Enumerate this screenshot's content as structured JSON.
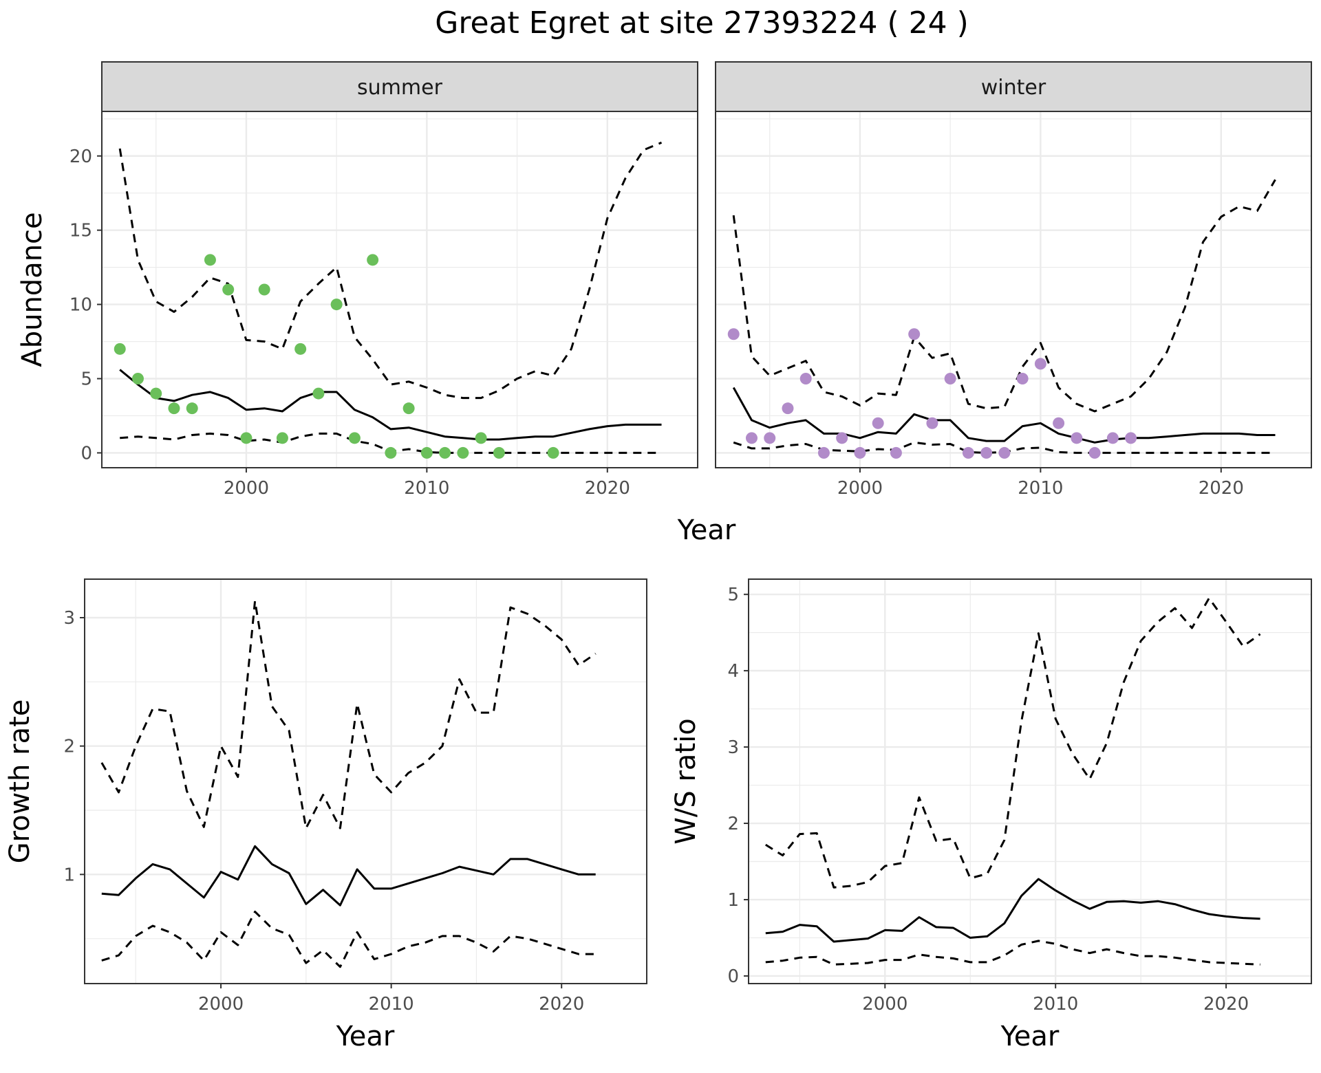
{
  "title": "Great Egret at site 27393224 ( 24 )",
  "colors": {
    "summer_points": "#6abf5a",
    "winter_points": "#b18bc9",
    "line": "#000000",
    "grid": "#ebebeb",
    "strip_bg": "#d9d9d9"
  },
  "chart_data": [
    {
      "type": "line",
      "facet": "summer",
      "xlabel": "Year",
      "ylabel": "Abundance",
      "xlim": [
        1992,
        2025
      ],
      "ylim": [
        -1,
        23
      ],
      "x_ticks": [
        2000,
        2010,
        2020
      ],
      "y_ticks": [
        0,
        5,
        10,
        15,
        20
      ],
      "grid": true,
      "points": {
        "x": [
          1993,
          1994,
          1995,
          1996,
          1997,
          1998,
          1999,
          2000,
          2001,
          2002,
          2003,
          2004,
          2005,
          2006,
          2007,
          2008,
          2009,
          2010,
          2011,
          2012,
          2013,
          2014,
          2017
        ],
        "y": [
          7,
          5,
          4,
          3,
          3,
          13,
          11,
          1,
          11,
          1,
          7,
          4,
          10,
          1,
          13,
          0,
          3,
          0,
          0,
          0,
          1,
          0,
          0
        ]
      },
      "series": [
        {
          "role": "estimate",
          "style": "solid",
          "x": [
            1993,
            1994,
            1995,
            1996,
            1997,
            1998,
            1999,
            2000,
            2001,
            2002,
            2003,
            2004,
            2005,
            2006,
            2007,
            2008,
            2009,
            2010,
            2011,
            2012,
            2013,
            2014,
            2015,
            2016,
            2017,
            2018,
            2019,
            2020,
            2021,
            2022,
            2023
          ],
          "values": [
            5.6,
            4.6,
            3.7,
            3.5,
            3.9,
            4.1,
            3.7,
            2.9,
            3.0,
            2.8,
            3.7,
            4.1,
            4.1,
            2.9,
            2.4,
            1.6,
            1.7,
            1.4,
            1.1,
            1.0,
            0.9,
            0.9,
            1.0,
            1.1,
            1.1,
            1.35,
            1.6,
            1.8,
            1.9,
            1.9,
            1.9
          ]
        },
        {
          "role": "upper",
          "style": "dashed",
          "x": [
            1993,
            1994,
            1995,
            1996,
            1997,
            1998,
            1999,
            2000,
            2001,
            2002,
            2003,
            2004,
            2005,
            2006,
            2007,
            2008,
            2009,
            2010,
            2011,
            2012,
            2013,
            2014,
            2015,
            2016,
            2017,
            2018,
            2019,
            2020,
            2021,
            2022,
            2023
          ],
          "values": [
            20.5,
            13,
            10.2,
            9.5,
            10.5,
            11.8,
            11.4,
            7.6,
            7.5,
            7.0,
            10.2,
            11.4,
            12.5,
            7.8,
            6.3,
            4.6,
            4.8,
            4.4,
            3.9,
            3.7,
            3.7,
            4.2,
            5.0,
            5.5,
            5.2,
            7.0,
            11.0,
            15.8,
            18.5,
            20.4,
            20.9
          ]
        },
        {
          "role": "lower",
          "style": "dashed",
          "x": [
            1993,
            1994,
            1995,
            1996,
            1997,
            1998,
            1999,
            2000,
            2001,
            2002,
            2003,
            2004,
            2005,
            2006,
            2007,
            2008,
            2009,
            2010,
            2011,
            2012,
            2013,
            2014,
            2015,
            2016,
            2017,
            2018,
            2019,
            2020,
            2021,
            2022,
            2023
          ],
          "values": [
            1.0,
            1.1,
            1.0,
            0.9,
            1.2,
            1.3,
            1.2,
            0.8,
            0.9,
            0.7,
            1.1,
            1.3,
            1.3,
            0.8,
            0.6,
            0.1,
            0.25,
            0.05,
            0,
            0,
            0,
            0,
            0,
            0,
            0,
            0,
            0,
            0,
            0,
            0,
            0
          ]
        }
      ]
    },
    {
      "type": "line",
      "facet": "winter",
      "xlabel": "Year",
      "ylabel": "",
      "xlim": [
        1992,
        2025
      ],
      "ylim": [
        -1,
        23
      ],
      "x_ticks": [
        2000,
        2010,
        2020
      ],
      "y_ticks": [
        0,
        5,
        10,
        15,
        20
      ],
      "grid": true,
      "points": {
        "x": [
          1993,
          1994,
          1995,
          1996,
          1997,
          1998,
          1999,
          2000,
          2001,
          2002,
          2003,
          2004,
          2005,
          2006,
          2007,
          2008,
          2009,
          2010,
          2011,
          2012,
          2013,
          2014,
          2015
        ],
        "y": [
          8,
          1,
          1,
          3,
          5,
          0,
          1,
          0,
          2,
          0,
          8,
          2,
          5,
          0,
          0,
          0,
          5,
          6,
          2,
          1,
          0,
          1,
          1
        ]
      },
      "series": [
        {
          "role": "estimate",
          "style": "solid",
          "x": [
            1993,
            1994,
            1995,
            1996,
            1997,
            1998,
            1999,
            2000,
            2001,
            2002,
            2003,
            2004,
            2005,
            2006,
            2007,
            2008,
            2009,
            2010,
            2011,
            2012,
            2013,
            2014,
            2015,
            2016,
            2017,
            2018,
            2019,
            2020,
            2021,
            2022,
            2023
          ],
          "values": [
            4.4,
            2.2,
            1.7,
            2.0,
            2.2,
            1.3,
            1.3,
            1.0,
            1.4,
            1.3,
            2.6,
            2.2,
            2.2,
            1.0,
            0.8,
            0.8,
            1.8,
            2.0,
            1.3,
            1.0,
            0.7,
            0.9,
            1.0,
            1.0,
            1.1,
            1.2,
            1.3,
            1.3,
            1.3,
            1.2,
            1.2
          ]
        },
        {
          "role": "upper",
          "style": "dashed",
          "x": [
            1993,
            1994,
            1995,
            1996,
            1997,
            1998,
            1999,
            2000,
            2001,
            2002,
            2003,
            2004,
            2005,
            2006,
            2007,
            2008,
            2009,
            2010,
            2011,
            2012,
            2013,
            2014,
            2015,
            2016,
            2017,
            2018,
            2019,
            2020,
            2021,
            2022,
            2023
          ],
          "values": [
            16,
            6.5,
            5.2,
            5.7,
            6.2,
            4.1,
            3.8,
            3.2,
            4.0,
            3.9,
            7.8,
            6.4,
            6.7,
            3.3,
            3.0,
            3.1,
            5.8,
            7.4,
            4.4,
            3.3,
            2.8,
            3.3,
            3.8,
            5.0,
            6.8,
            9.8,
            14.2,
            15.9,
            16.6,
            16.3,
            18.4
          ]
        },
        {
          "role": "lower",
          "style": "dashed",
          "x": [
            1993,
            1994,
            1995,
            1996,
            1997,
            1998,
            1999,
            2000,
            2001,
            2002,
            2003,
            2004,
            2005,
            2006,
            2007,
            2008,
            2009,
            2010,
            2011,
            2012,
            2013,
            2014,
            2015,
            2016,
            2017,
            2018,
            2019,
            2020,
            2021,
            2022,
            2023
          ],
          "values": [
            0.7,
            0.3,
            0.3,
            0.5,
            0.6,
            0.2,
            0.15,
            0.1,
            0.25,
            0.2,
            0.7,
            0.55,
            0.6,
            0.05,
            0,
            0.05,
            0.3,
            0.35,
            0.05,
            0,
            0,
            0,
            0,
            0,
            0,
            0,
            0,
            0,
            0,
            0,
            0
          ]
        }
      ]
    },
    {
      "type": "line",
      "facet": "",
      "xlabel": "Year",
      "ylabel": "Growth rate",
      "xlim": [
        1992,
        2025
      ],
      "ylim": [
        0.15,
        3.3
      ],
      "x_ticks": [
        2000,
        2010,
        2020
      ],
      "y_ticks": [
        1,
        2,
        3
      ],
      "grid": true,
      "series": [
        {
          "role": "estimate",
          "style": "solid",
          "x": [
            1993,
            1994,
            1995,
            1996,
            1997,
            1998,
            1999,
            2000,
            2001,
            2002,
            2003,
            2004,
            2005,
            2006,
            2007,
            2008,
            2009,
            2010,
            2011,
            2012,
            2013,
            2014,
            2015,
            2016,
            2017,
            2018,
            2019,
            2020,
            2021,
            2022
          ],
          "values": [
            0.85,
            0.84,
            0.97,
            1.08,
            1.04,
            0.93,
            0.82,
            1.02,
            0.96,
            1.22,
            1.08,
            1.01,
            0.77,
            0.88,
            0.76,
            1.04,
            0.89,
            0.89,
            0.93,
            0.97,
            1.01,
            1.06,
            1.03,
            1.0,
            1.12,
            1.12,
            1.08,
            1.04,
            1.0,
            1.0
          ]
        },
        {
          "role": "upper",
          "style": "dashed",
          "x": [
            1993,
            1994,
            1995,
            1996,
            1997,
            1998,
            1999,
            2000,
            2001,
            2002,
            2003,
            2004,
            2005,
            2006,
            2007,
            2008,
            2009,
            2010,
            2011,
            2012,
            2013,
            2014,
            2015,
            2016,
            2017,
            2018,
            2019,
            2020,
            2021,
            2022
          ],
          "values": [
            1.87,
            1.64,
            2.0,
            2.29,
            2.27,
            1.65,
            1.37,
            2.0,
            1.76,
            3.13,
            2.31,
            2.12,
            1.36,
            1.62,
            1.36,
            2.33,
            1.78,
            1.64,
            1.79,
            1.87,
            2.0,
            2.52,
            2.26,
            2.26,
            3.08,
            3.03,
            2.94,
            2.83,
            2.63,
            2.72
          ]
        },
        {
          "role": "lower",
          "style": "dashed",
          "x": [
            1993,
            1994,
            1995,
            1996,
            1997,
            1998,
            1999,
            2000,
            2001,
            2002,
            2003,
            2004,
            2005,
            2006,
            2007,
            2008,
            2009,
            2010,
            2011,
            2012,
            2013,
            2014,
            2015,
            2016,
            2017,
            2018,
            2019,
            2020,
            2021,
            2022
          ],
          "values": [
            0.33,
            0.37,
            0.52,
            0.6,
            0.55,
            0.47,
            0.33,
            0.55,
            0.45,
            0.71,
            0.58,
            0.53,
            0.31,
            0.41,
            0.28,
            0.55,
            0.34,
            0.38,
            0.44,
            0.47,
            0.52,
            0.52,
            0.47,
            0.4,
            0.52,
            0.5,
            0.46,
            0.42,
            0.38,
            0.38
          ]
        }
      ]
    },
    {
      "type": "line",
      "facet": "",
      "xlabel": "Year",
      "ylabel": "W/S ratio",
      "xlim": [
        1992,
        2025
      ],
      "ylim": [
        -0.1,
        5.2
      ],
      "x_ticks": [
        2000,
        2010,
        2020
      ],
      "y_ticks": [
        0,
        1,
        2,
        3,
        4,
        5
      ],
      "grid": true,
      "series": [
        {
          "role": "estimate",
          "style": "solid",
          "x": [
            1993,
            1994,
            1995,
            1996,
            1997,
            1998,
            1999,
            2000,
            2001,
            2002,
            2003,
            2004,
            2005,
            2006,
            2007,
            2008,
            2009,
            2010,
            2011,
            2012,
            2013,
            2014,
            2015,
            2016,
            2017,
            2018,
            2019,
            2020,
            2021,
            2022
          ],
          "values": [
            0.56,
            0.58,
            0.67,
            0.65,
            0.45,
            0.47,
            0.49,
            0.6,
            0.59,
            0.77,
            0.64,
            0.63,
            0.5,
            0.52,
            0.69,
            1.05,
            1.27,
            1.12,
            0.99,
            0.88,
            0.97,
            0.98,
            0.96,
            0.98,
            0.94,
            0.87,
            0.81,
            0.78,
            0.76,
            0.75
          ]
        },
        {
          "role": "upper",
          "style": "dashed",
          "x": [
            1993,
            1994,
            1995,
            1996,
            1997,
            1998,
            1999,
            2000,
            2001,
            2002,
            2003,
            2004,
            2005,
            2006,
            2007,
            2008,
            2009,
            2010,
            2011,
            2012,
            2013,
            2014,
            2015,
            2016,
            2017,
            2018,
            2019,
            2020,
            2021,
            2022
          ],
          "values": [
            1.72,
            1.58,
            1.86,
            1.87,
            1.16,
            1.18,
            1.23,
            1.44,
            1.48,
            2.34,
            1.77,
            1.8,
            1.28,
            1.34,
            1.78,
            3.34,
            4.49,
            3.37,
            2.91,
            2.58,
            3.05,
            3.85,
            4.39,
            4.64,
            4.82,
            4.56,
            4.95,
            4.64,
            4.32,
            4.48
          ]
        },
        {
          "role": "lower",
          "style": "dashed",
          "x": [
            1993,
            1994,
            1995,
            1996,
            1997,
            1998,
            1999,
            2000,
            2001,
            2002,
            2003,
            2004,
            2005,
            2006,
            2007,
            2008,
            2009,
            2010,
            2011,
            2012,
            2013,
            2014,
            2015,
            2016,
            2017,
            2018,
            2019,
            2020,
            2021,
            2022
          ],
          "values": [
            0.18,
            0.2,
            0.24,
            0.25,
            0.15,
            0.16,
            0.17,
            0.21,
            0.21,
            0.28,
            0.25,
            0.23,
            0.18,
            0.18,
            0.27,
            0.41,
            0.46,
            0.42,
            0.35,
            0.3,
            0.35,
            0.3,
            0.26,
            0.26,
            0.24,
            0.21,
            0.18,
            0.17,
            0.16,
            0.15
          ]
        }
      ]
    }
  ]
}
